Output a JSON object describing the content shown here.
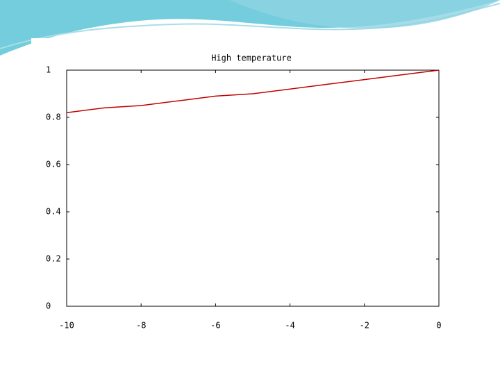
{
  "chart_data": {
    "type": "line",
    "title": "High temperature",
    "x": [
      -10,
      -9,
      -8,
      -7,
      -6,
      -5,
      -4,
      -3,
      -2,
      -1,
      0
    ],
    "series": [
      {
        "color": "#c00000",
        "values": [
          0.82,
          0.84,
          0.85,
          0.87,
          0.89,
          0.9,
          0.92,
          0.94,
          0.96,
          0.98,
          1
        ]
      }
    ],
    "xlim": [
      -10,
      0
    ],
    "xticks": [
      -10,
      -8,
      -6,
      -4,
      -2,
      0
    ],
    "ylim": [
      0,
      1
    ],
    "yticks": [
      0,
      0.2,
      0.4,
      0.6,
      0.8,
      1
    ],
    "grid": false
  }
}
